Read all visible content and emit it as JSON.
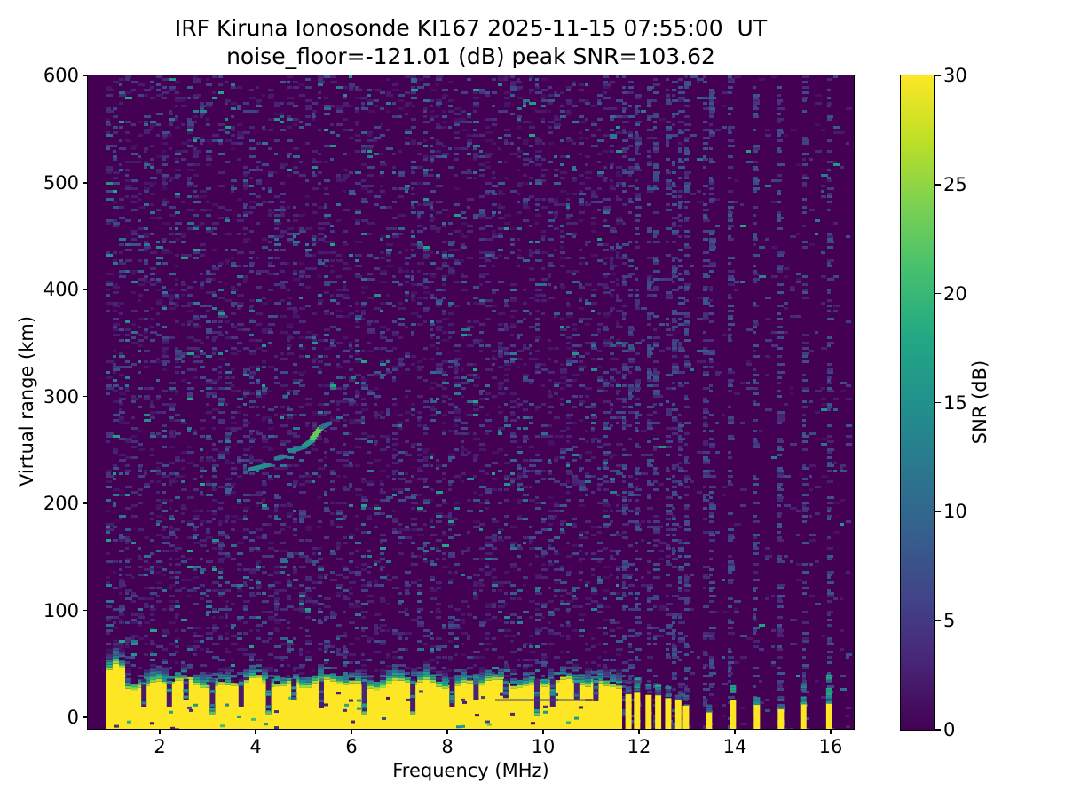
{
  "chart_data": {
    "type": "heatmap",
    "title": "IRF Kiruna Ionosonde KI167 2025-11-15 07:55:00  UT",
    "subtitle": "noise_floor=-121.01 (dB) peak SNR=103.62",
    "station": "KI167",
    "timestamp_ut": "2025-11-15 07:55:00",
    "noise_floor_db": -121.01,
    "peak_snr_db": 103.62,
    "xlabel": "Frequency (MHz)",
    "ylabel": "Virtual range (km)",
    "xlim": [
      0.5,
      16.5
    ],
    "ylim": [
      -11,
      600
    ],
    "xticks": [
      2,
      4,
      6,
      8,
      10,
      12,
      14,
      16
    ],
    "yticks": [
      0,
      100,
      200,
      300,
      400,
      500,
      600
    ],
    "grid": false,
    "colorbar": {
      "label": "SNR (dB)",
      "min": 0,
      "max": 30,
      "ticks": [
        0,
        5,
        10,
        15,
        20,
        25,
        30
      ],
      "colormap": "viridis"
    },
    "colormap_stops": [
      [
        0,
        "#440154"
      ],
      [
        0.1,
        "#482475"
      ],
      [
        0.2,
        "#414487"
      ],
      [
        0.3,
        "#355f8d"
      ],
      [
        0.4,
        "#2a788e"
      ],
      [
        0.5,
        "#21918c"
      ],
      [
        0.6,
        "#22a884"
      ],
      [
        0.7,
        "#44bf70"
      ],
      [
        0.8,
        "#7ad151"
      ],
      [
        0.9,
        "#bddf26"
      ],
      [
        1,
        "#fde725"
      ]
    ],
    "background_db": 0,
    "sweep": {
      "f_start_mhz": 0.95,
      "f_end_mhz": 16.12
    },
    "ground_clutter": {
      "f_min": 0.95,
      "f_max": 11.63,
      "top_km_mean": 30,
      "top_km_var": 9,
      "db": 30,
      "notches": [
        {
          "f": 1.67,
          "floor_km": 10
        },
        {
          "f": 2.2,
          "floor_km": 10
        },
        {
          "f": 2.55,
          "floor_km": 16
        },
        {
          "f": 3.1,
          "floor_km": 3
        },
        {
          "f": 3.7,
          "floor_km": 10
        },
        {
          "f": 4.27,
          "floor_km": 3
        },
        {
          "f": 4.8,
          "floor_km": 16
        },
        {
          "f": 5.37,
          "floor_km": 9
        },
        {
          "f": 6.27,
          "floor_km": 3
        },
        {
          "f": 7.28,
          "floor_km": 3
        },
        {
          "f": 8.1,
          "floor_km": 10
        },
        {
          "f": 8.6,
          "floor_km": 16
        },
        {
          "f": 9.22,
          "floor_km": 18
        },
        {
          "f": 9.87,
          "floor_km": 2
        },
        {
          "f": 10.2,
          "floor_km": 10
        },
        {
          "f": 10.7,
          "floor_km": 16
        },
        {
          "f": 11.1,
          "floor_km": 15
        }
      ],
      "inner_line": {
        "f0": 9.0,
        "f1": 11.07,
        "km": 17,
        "db": 6
      },
      "inner_line_mark": {
        "f": 10.95,
        "km": 17,
        "color": "#6e1423"
      }
    },
    "echo_trace": {
      "name": "ionospheric echo",
      "segments": [
        {
          "f0": 3.88,
          "f1": 4.25,
          "km0": 232,
          "km1": 236,
          "db": 15
        },
        {
          "f0": 4.42,
          "f1": 4.58,
          "km0": 242,
          "km1": 244,
          "db": 13
        },
        {
          "f0": 4.72,
          "f1": 5.0,
          "km0": 249,
          "km1": 253,
          "db": 14
        },
        {
          "f0": 5.0,
          "f1": 5.17,
          "km0": 254,
          "km1": 259,
          "db": 16
        },
        {
          "f0": 5.17,
          "f1": 5.35,
          "km0": 261,
          "km1": 271,
          "db": 23
        },
        {
          "f0": 5.35,
          "f1": 5.52,
          "km0": 271,
          "km1": 275,
          "db": 12
        }
      ],
      "specks": [
        {
          "f": 3.78,
          "km": 229,
          "db": 9
        },
        {
          "f": 6.02,
          "km": 318,
          "db": 13
        },
        {
          "f": 5.98,
          "km": 297,
          "db": 8
        },
        {
          "f": 4.6,
          "km": 300,
          "db": 10
        }
      ]
    },
    "interference_stripes": [
      {
        "f": 11.78,
        "clutter_top_km": 22,
        "fuzz_top_km": 34
      },
      {
        "f": 11.96,
        "clutter_top_km": 23,
        "fuzz_top_km": 37
      },
      {
        "f": 12.2,
        "clutter_top_km": 21,
        "fuzz_top_km": 31
      },
      {
        "f": 12.4,
        "clutter_top_km": 21,
        "fuzz_top_km": 33
      },
      {
        "f": 12.61,
        "clutter_top_km": 18,
        "fuzz_top_km": 29
      },
      {
        "f": 12.82,
        "clutter_top_km": 16,
        "fuzz_top_km": 26
      },
      {
        "f": 12.98,
        "clutter_top_km": 11,
        "fuzz_top_km": 21
      },
      {
        "f": 13.46,
        "clutter_top_km": 6,
        "fuzz_top_km": 12
      },
      {
        "f": 13.96,
        "clutter_top_km": 16,
        "fuzz_top_km": 30
      },
      {
        "f": 14.46,
        "clutter_top_km": 12,
        "fuzz_top_km": 24
      },
      {
        "f": 14.96,
        "clutter_top_km": 10,
        "fuzz_top_km": 20
      },
      {
        "f": 15.43,
        "clutter_top_km": 14,
        "fuzz_top_km": 32
      },
      {
        "f": 15.97,
        "clutter_top_km": 14,
        "fuzz_top_km": 40
      }
    ],
    "noise_speckle": {
      "p_below_11_63": 0.26,
      "p_above_11_63": 0.05,
      "p_stripe_column": 0.38
    },
    "axes_color": "#000000"
  }
}
